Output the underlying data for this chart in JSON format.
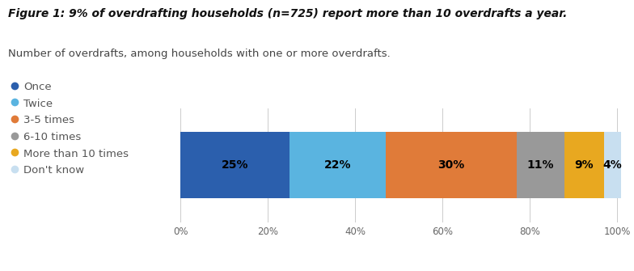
{
  "title_bold": "Figure 1: 9% of overdrafting households (n=725) report more than 10 overdrafts a year.",
  "subtitle": "Number of overdrafts, among households with one or more overdrafts.",
  "categories": [
    "Once",
    "Twice",
    "3-5 times",
    "6-10 times",
    "More than 10 times",
    "Don't know"
  ],
  "values": [
    25,
    22,
    30,
    11,
    9,
    4
  ],
  "labels": [
    "25%",
    "22%",
    "30%",
    "11%",
    "9%",
    "4%"
  ],
  "colors": [
    "#2b5fad",
    "#5ab4e0",
    "#e07b39",
    "#999999",
    "#e8a820",
    "#c8dff0"
  ],
  "background_color": "#ffffff",
  "bar_height": 0.7,
  "label_fontsize": 10,
  "legend_fontsize": 9.5,
  "title_fontsize": 10,
  "subtitle_fontsize": 9.5,
  "xlim": [
    0,
    101
  ],
  "xticks": [
    0,
    20,
    40,
    60,
    80,
    100
  ],
  "xticklabels": [
    "0%",
    "20%",
    "40%",
    "60%",
    "80%",
    "100%"
  ]
}
